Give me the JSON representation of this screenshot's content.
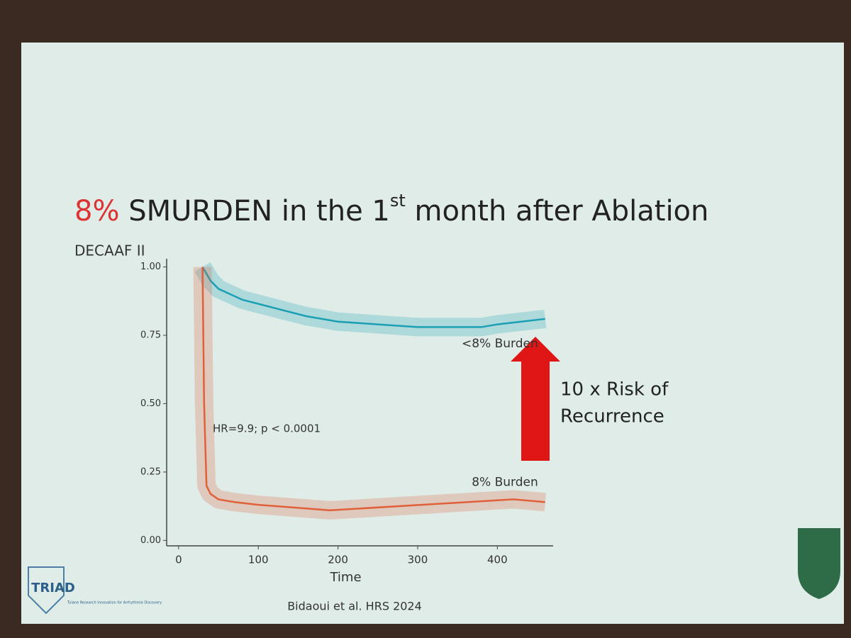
{
  "slide": {
    "title": {
      "highlight": "8%",
      "text": "SMURDEN in the 1",
      "superscript": "st",
      "rest": "month after Ablation"
    },
    "subtitle": "DECAAF II",
    "citation": "Bidaoui et al. HRS 2024",
    "logo": {
      "name": "TRIAD",
      "tagline": "Tulane Research Innovation for Arrhythmia Discovery"
    }
  },
  "chart_data": {
    "type": "line",
    "x_label": "Time",
    "xlim": [
      -15,
      470
    ],
    "ylim": [
      -0.02,
      1.03
    ],
    "xticks": [
      0,
      100,
      200,
      300,
      400
    ],
    "yticks": [
      {
        "value": 0,
        "label": "0.00"
      },
      {
        "value": 0.25,
        "label": "0.25"
      },
      {
        "value": 0.5,
        "label": "0.50"
      },
      {
        "value": 0.75,
        "label": "0.75"
      },
      {
        "value": 1,
        "label": "1.00"
      }
    ],
    "series": [
      {
        "name": "<8% Burden",
        "color": "#1a9fb5",
        "x": [
          30,
          40,
          50,
          80,
          120,
          160,
          200,
          250,
          300,
          350,
          380,
          400,
          430,
          460
        ],
        "values": [
          1.0,
          0.95,
          0.92,
          0.88,
          0.85,
          0.82,
          0.8,
          0.79,
          0.78,
          0.78,
          0.78,
          0.79,
          0.8,
          0.81
        ]
      },
      {
        "name": "8% Burden",
        "color": "#e0603a",
        "x": [
          30,
          32,
          35,
          40,
          50,
          70,
          100,
          190,
          420,
          460
        ],
        "values": [
          1.0,
          0.5,
          0.2,
          0.17,
          0.15,
          0.14,
          0.13,
          0.11,
          0.15,
          0.14
        ]
      }
    ],
    "annotations": {
      "hr": "HR=9.9; p < 0.0001",
      "risk": [
        "10 x Risk of",
        "Recurrence"
      ]
    }
  }
}
